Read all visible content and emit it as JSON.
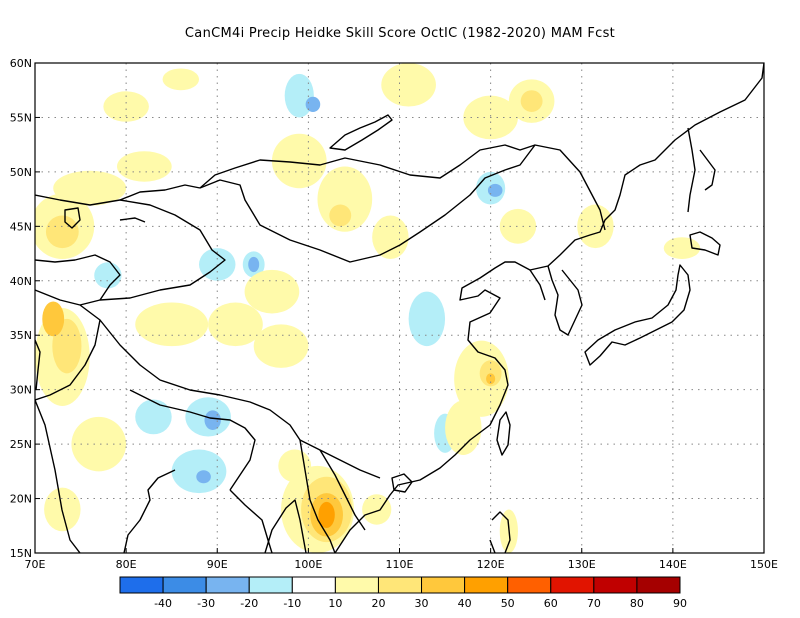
{
  "title": "CanCM4i Precip Heidke Skill Score OctIC (1982-2020) MAM Fcst",
  "map": {
    "lon_range": [
      70,
      150
    ],
    "lat_range": [
      15,
      60
    ],
    "lon_ticks": [
      {
        "value": 70,
        "label": "70E"
      },
      {
        "value": 80,
        "label": "80E"
      },
      {
        "value": 90,
        "label": "90E"
      },
      {
        "value": 100,
        "label": "100E"
      },
      {
        "value": 110,
        "label": "110E"
      },
      {
        "value": 120,
        "label": "120E"
      },
      {
        "value": 130,
        "label": "130E"
      },
      {
        "value": 140,
        "label": "140E"
      },
      {
        "value": 150,
        "label": "150E"
      }
    ],
    "lat_ticks": [
      {
        "value": 15,
        "label": "15N"
      },
      {
        "value": 20,
        "label": "20N"
      },
      {
        "value": 25,
        "label": "25N"
      },
      {
        "value": 30,
        "label": "30N"
      },
      {
        "value": 35,
        "label": "35N"
      },
      {
        "value": 40,
        "label": "40N"
      },
      {
        "value": 45,
        "label": "45N"
      },
      {
        "value": 50,
        "label": "50N"
      },
      {
        "value": 55,
        "label": "55N"
      },
      {
        "value": 60,
        "label": "60N"
      }
    ],
    "grid": "dotted",
    "skill_regions": [
      {
        "lon": 73,
        "lat": 45,
        "rx": 3.5,
        "ry": 3,
        "level": 20
      },
      {
        "lon": 73,
        "lat": 44.5,
        "rx": 1.8,
        "ry": 1.5,
        "level": 30
      },
      {
        "lon": 76,
        "lat": 48.5,
        "rx": 4,
        "ry": 1.6,
        "level": 20
      },
      {
        "lon": 73,
        "lat": 33,
        "rx": 3,
        "ry": 4.5,
        "level": 20
      },
      {
        "lon": 73.5,
        "lat": 34,
        "rx": 1.6,
        "ry": 2.5,
        "level": 30
      },
      {
        "lon": 72,
        "lat": 36.5,
        "rx": 1.2,
        "ry": 1.6,
        "level": 40
      },
      {
        "lon": 77,
        "lat": 25,
        "rx": 3,
        "ry": 2.5,
        "level": 20
      },
      {
        "lon": 73,
        "lat": 19,
        "rx": 2,
        "ry": 2,
        "level": 20
      },
      {
        "lon": 82,
        "lat": 50.5,
        "rx": 3,
        "ry": 1.4,
        "level": 20
      },
      {
        "lon": 80,
        "lat": 56,
        "rx": 2.5,
        "ry": 1.4,
        "level": 20
      },
      {
        "lon": 86,
        "lat": 58.5,
        "rx": 2,
        "ry": 1,
        "level": 20
      },
      {
        "lon": 85,
        "lat": 36,
        "rx": 4,
        "ry": 2,
        "level": 20
      },
      {
        "lon": 92,
        "lat": 36,
        "rx": 3,
        "ry": 2,
        "level": 20
      },
      {
        "lon": 97,
        "lat": 34,
        "rx": 3,
        "ry": 2,
        "level": 20
      },
      {
        "lon": 96,
        "lat": 39,
        "rx": 3,
        "ry": 2,
        "level": 20
      },
      {
        "lon": 99,
        "lat": 51,
        "rx": 3,
        "ry": 2.5,
        "level": 20
      },
      {
        "lon": 104,
        "lat": 47.5,
        "rx": 3,
        "ry": 3,
        "level": 20
      },
      {
        "lon": 103.5,
        "lat": 46,
        "rx": 1.2,
        "ry": 1,
        "level": 30
      },
      {
        "lon": 109,
        "lat": 44,
        "rx": 2,
        "ry": 2,
        "level": 20
      },
      {
        "lon": 111,
        "lat": 58,
        "rx": 3,
        "ry": 2,
        "level": 20
      },
      {
        "lon": 120,
        "lat": 55,
        "rx": 3,
        "ry": 2,
        "level": 20
      },
      {
        "lon": 124.5,
        "lat": 56.5,
        "rx": 2.5,
        "ry": 2,
        "level": 20
      },
      {
        "lon": 124.5,
        "lat": 56.5,
        "rx": 1.2,
        "ry": 1,
        "level": 30
      },
      {
        "lon": 123,
        "lat": 45,
        "rx": 2,
        "ry": 1.6,
        "level": 20
      },
      {
        "lon": 131.5,
        "lat": 45,
        "rx": 2,
        "ry": 2,
        "level": 20
      },
      {
        "lon": 141,
        "lat": 43,
        "rx": 2,
        "ry": 1,
        "level": 20
      },
      {
        "lon": 119,
        "lat": 31,
        "rx": 3,
        "ry": 3.5,
        "level": 20
      },
      {
        "lon": 120,
        "lat": 31.5,
        "rx": 1.2,
        "ry": 1.2,
        "level": 30
      },
      {
        "lon": 120,
        "lat": 31,
        "rx": 0.5,
        "ry": 0.5,
        "level": 40
      },
      {
        "lon": 117,
        "lat": 26.5,
        "rx": 2,
        "ry": 2.5,
        "level": 20
      },
      {
        "lon": 122,
        "lat": 17,
        "rx": 1,
        "ry": 2,
        "level": 20
      },
      {
        "lon": 101,
        "lat": 19,
        "rx": 4,
        "ry": 4,
        "level": 20
      },
      {
        "lon": 102,
        "lat": 19,
        "rx": 2.8,
        "ry": 3,
        "level": 30
      },
      {
        "lon": 102,
        "lat": 18.5,
        "rx": 1.8,
        "ry": 2,
        "level": 40
      },
      {
        "lon": 102,
        "lat": 18.5,
        "rx": 0.9,
        "ry": 1.2,
        "level": 50
      },
      {
        "lon": 107.5,
        "lat": 19,
        "rx": 1.6,
        "ry": 1.4,
        "level": 20
      },
      {
        "lon": 98.5,
        "lat": 23,
        "rx": 1.8,
        "ry": 1.5,
        "level": 20
      },
      {
        "lon": 83,
        "lat": 27.5,
        "rx": 2,
        "ry": 1.6,
        "level": -10
      },
      {
        "lon": 88,
        "lat": 22.5,
        "rx": 3,
        "ry": 2,
        "level": -10
      },
      {
        "lon": 90,
        "lat": 41.5,
        "rx": 2,
        "ry": 1.5,
        "level": -10
      },
      {
        "lon": 94,
        "lat": 41.5,
        "rx": 1.2,
        "ry": 1.2,
        "level": -10
      },
      {
        "lon": 94,
        "lat": 41.5,
        "rx": 0.6,
        "ry": 0.7,
        "level": -20
      },
      {
        "lon": 89,
        "lat": 27.5,
        "rx": 2.5,
        "ry": 1.8,
        "level": -10
      },
      {
        "lon": 89.5,
        "lat": 27.2,
        "rx": 0.9,
        "ry": 0.9,
        "level": -20
      },
      {
        "lon": 99,
        "lat": 57,
        "rx": 1.6,
        "ry": 2,
        "level": -10
      },
      {
        "lon": 100.5,
        "lat": 56.2,
        "rx": 0.8,
        "ry": 0.7,
        "level": -20
      },
      {
        "lon": 113,
        "lat": 36.5,
        "rx": 2,
        "ry": 2.5,
        "level": -10
      },
      {
        "lon": 115,
        "lat": 26,
        "rx": 1.2,
        "ry": 1.8,
        "level": -10
      },
      {
        "lon": 120,
        "lat": 48.5,
        "rx": 1.6,
        "ry": 1.5,
        "level": -10
      },
      {
        "lon": 120.5,
        "lat": 48.3,
        "rx": 0.8,
        "ry": 0.6,
        "level": -20
      },
      {
        "lon": 78,
        "lat": 40.5,
        "rx": 1.5,
        "ry": 1.2,
        "level": -10
      },
      {
        "lon": 88.5,
        "lat": 22,
        "rx": 0.8,
        "ry": 0.6,
        "level": -20
      }
    ]
  },
  "colorbar": {
    "levels": [
      -40,
      -30,
      -20,
      -10,
      10,
      20,
      30,
      40,
      50,
      60,
      70,
      80,
      90
    ],
    "labels": [
      "-40",
      "-30",
      "-20",
      "-10",
      "10",
      "20",
      "30",
      "40",
      "50",
      "60",
      "70",
      "80",
      "90"
    ],
    "colors": [
      "#1e6eeb",
      "#3c8ce6",
      "#78b4f0",
      "#b4eef8",
      "#ffffff",
      "#fffaaa",
      "#ffe678",
      "#ffc83c",
      "#ffa000",
      "#ff6000",
      "#e11400",
      "#c00000",
      "#a50000"
    ]
  }
}
